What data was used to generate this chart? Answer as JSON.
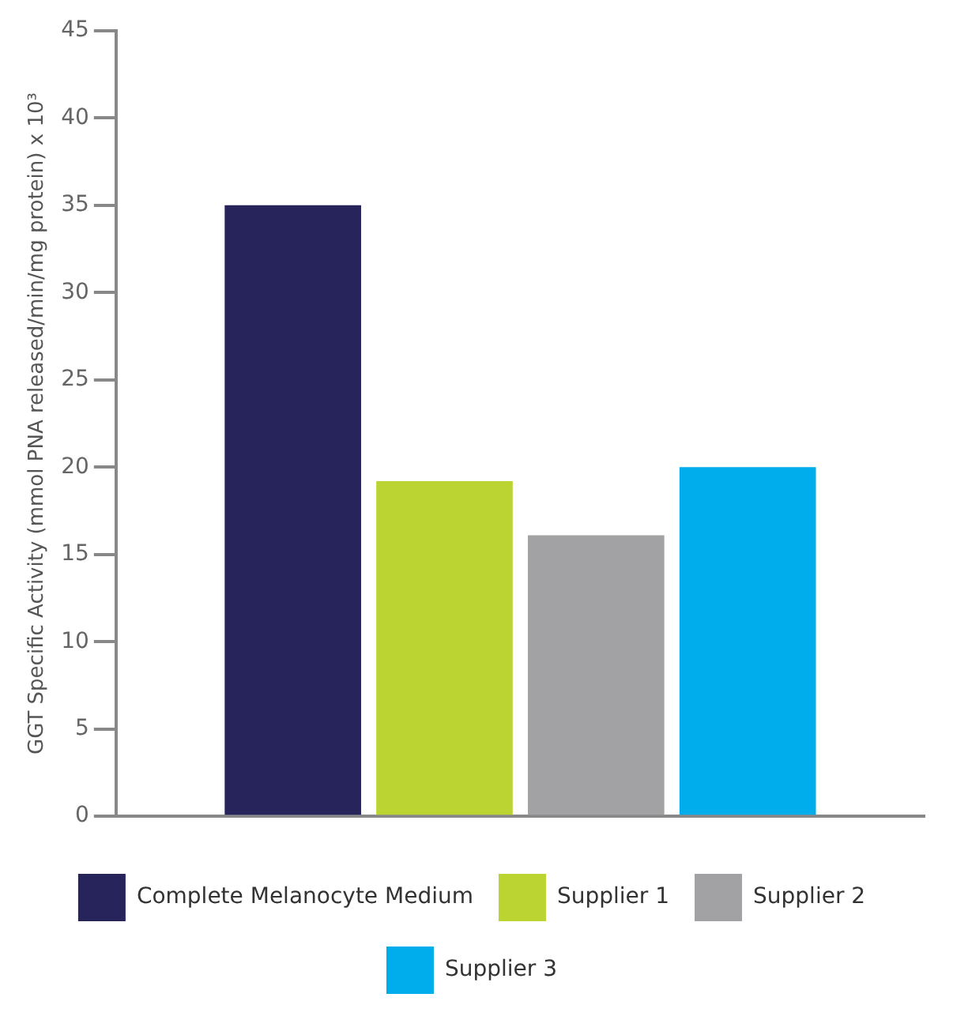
{
  "chart_data": {
    "type": "bar",
    "ylabel": "GGT Specific Activity (mmol PNA released/min/mg protein) x 10³",
    "categories": [
      null
    ],
    "series": [
      {
        "name": "Complete Melanocyte Medium",
        "color": "#27245b",
        "values": [
          35
        ]
      },
      {
        "name": "Supplier 1",
        "color": "#bcd432",
        "values": [
          19.2
        ]
      },
      {
        "name": "Supplier 2",
        "color": "#a2a2a4",
        "values": [
          16.1
        ]
      },
      {
        "name": "Supplier 3",
        "color": "#00adec",
        "values": [
          20.0
        ]
      }
    ],
    "ylim": [
      0,
      45
    ],
    "yticks": [
      0,
      5,
      10,
      15,
      20,
      25,
      30,
      35,
      40,
      45
    ],
    "grid": false,
    "legend": "bottom"
  }
}
